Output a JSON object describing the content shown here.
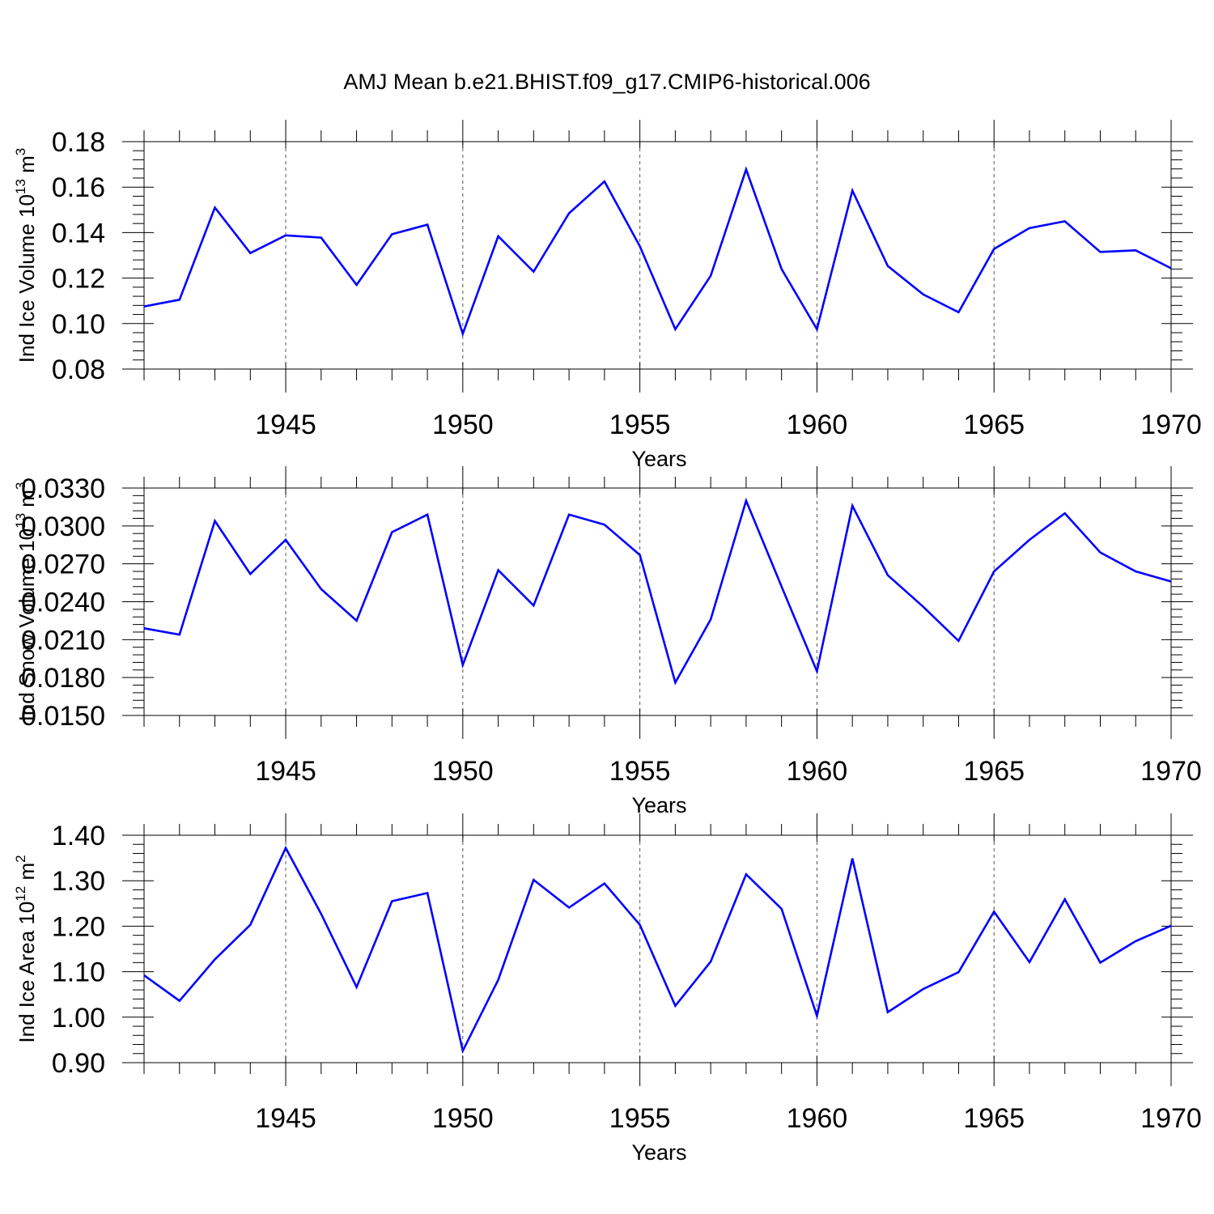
{
  "title": "AMJ Mean b.e21.BHIST.f09_g17.CMIP6-historical.006",
  "line_color": "#0000ff",
  "chart_data": [
    {
      "type": "line",
      "ylabel": "Ind Ice Volume 10",
      "ylabel_exp": "13",
      "ylabel_unit": " m",
      "ylabel_unit_exp": "3",
      "xlabel": "Years",
      "xlim": [
        1941,
        1970
      ],
      "ylim": [
        0.08,
        0.18
      ],
      "ytick_values": [
        0.08,
        0.1,
        0.12,
        0.14,
        0.16,
        0.18
      ],
      "ytick_labels": [
        "0.08",
        "0.10",
        "0.12",
        "0.14",
        "0.16",
        "0.18"
      ],
      "xtick_values": [
        1945,
        1950,
        1955,
        1960,
        1965,
        1970
      ],
      "xtick_labels": [
        "1945",
        "1950",
        "1955",
        "1960",
        "1965",
        "1970"
      ],
      "x": [
        1941,
        1942,
        1943,
        1944,
        1945,
        1946,
        1947,
        1948,
        1949,
        1950,
        1951,
        1952,
        1953,
        1954,
        1955,
        1956,
        1957,
        1958,
        1959,
        1960,
        1961,
        1962,
        1963,
        1964,
        1965,
        1966,
        1967,
        1968,
        1969,
        1970
      ],
      "values": [
        0.1075,
        0.1105,
        0.151,
        0.131,
        0.1388,
        0.1378,
        0.117,
        0.1393,
        0.1435,
        0.0955,
        0.1384,
        0.1228,
        0.1485,
        0.1625,
        0.134,
        0.0975,
        0.121,
        0.1678,
        0.124,
        0.0975,
        0.1585,
        0.1253,
        0.1128,
        0.105,
        0.1328,
        0.142,
        0.145,
        0.1315,
        0.1322,
        0.1243
      ]
    },
    {
      "type": "line",
      "ylabel": "Ind Snow Volume 10",
      "ylabel_exp": "13",
      "ylabel_unit": " m",
      "ylabel_unit_exp": "3",
      "xlabel": "Years",
      "xlim": [
        1941,
        1970
      ],
      "ylim": [
        0.015,
        0.033
      ],
      "ytick_values": [
        0.015,
        0.018,
        0.021,
        0.024,
        0.027,
        0.03,
        0.033
      ],
      "ytick_labels": [
        "0.0150",
        "0.0180",
        "0.0210",
        "0.0240",
        "0.0270",
        "0.0300",
        "0.0330"
      ],
      "xtick_values": [
        1945,
        1950,
        1955,
        1960,
        1965,
        1970
      ],
      "xtick_labels": [
        "1945",
        "1950",
        "1955",
        "1960",
        "1965",
        "1970"
      ],
      "x": [
        1941,
        1942,
        1943,
        1944,
        1945,
        1946,
        1947,
        1948,
        1949,
        1950,
        1951,
        1952,
        1953,
        1954,
        1955,
        1956,
        1957,
        1958,
        1959,
        1960,
        1961,
        1962,
        1963,
        1964,
        1965,
        1966,
        1967,
        1968,
        1969,
        1970
      ],
      "values": [
        0.0219,
        0.0214,
        0.0304,
        0.0262,
        0.0289,
        0.025,
        0.0225,
        0.0295,
        0.0309,
        0.019,
        0.0265,
        0.0237,
        0.0309,
        0.0301,
        0.0277,
        0.0176,
        0.0226,
        0.032,
        0.0252,
        0.0185,
        0.0316,
        0.0261,
        0.0236,
        0.0209,
        0.0264,
        0.0289,
        0.031,
        0.0279,
        0.0264,
        0.0256
      ]
    },
    {
      "type": "line",
      "ylabel": "Ind Ice Area 10",
      "ylabel_exp": "12",
      "ylabel_unit": " m",
      "ylabel_unit_exp": "2",
      "xlabel": "Years",
      "xlim": [
        1941,
        1970
      ],
      "ylim": [
        0.9,
        1.4
      ],
      "ytick_values": [
        0.9,
        1.0,
        1.1,
        1.2,
        1.3,
        1.4
      ],
      "ytick_labels": [
        "0.90",
        "1.00",
        "1.10",
        "1.20",
        "1.30",
        "1.40"
      ],
      "xtick_values": [
        1945,
        1950,
        1955,
        1960,
        1965,
        1970
      ],
      "xtick_labels": [
        "1945",
        "1950",
        "1955",
        "1960",
        "1965",
        "1970"
      ],
      "x": [
        1941,
        1942,
        1943,
        1944,
        1945,
        1946,
        1947,
        1948,
        1949,
        1950,
        1951,
        1952,
        1953,
        1954,
        1955,
        1956,
        1957,
        1958,
        1959,
        1960,
        1961,
        1962,
        1963,
        1964,
        1965,
        1966,
        1967,
        1968,
        1969,
        1970
      ],
      "values": [
        1.092,
        1.036,
        1.127,
        1.203,
        1.372,
        1.227,
        1.066,
        1.255,
        1.273,
        0.926,
        1.082,
        1.302,
        1.241,
        1.294,
        1.203,
        1.025,
        1.122,
        1.314,
        1.238,
        1.003,
        1.349,
        1.011,
        1.062,
        1.099,
        1.232,
        1.121,
        1.259,
        1.12,
        1.167,
        1.201
      ]
    }
  ]
}
